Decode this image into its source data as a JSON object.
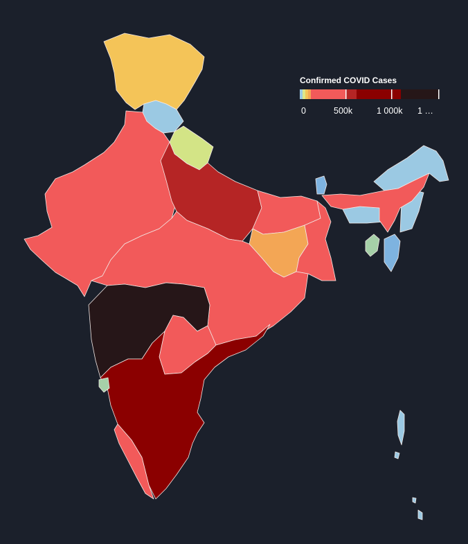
{
  "legend": {
    "title": "Confirmed COVID Cases",
    "ticks": [
      "0",
      "500k",
      "1 000k",
      "1 …"
    ]
  },
  "colors": {
    "background": "#1b202b",
    "border": "#f3e9e6",
    "legend_bands": [
      "#9bc9e3",
      "#dde78a",
      "#f4c458",
      "#f3a655",
      "#f25a5a",
      "#b52525",
      "#8b0000",
      "#261618"
    ]
  },
  "map_data": {
    "type": "choropleth",
    "region": "India (states)",
    "fill_by_region": {
      "jammu-kashmir": "#f4c458",
      "himachal": "#9bc9e3",
      "uttarakhand": "#d3e486",
      "punjab-haryana-rajasthan-gujarat": "#f25a5a",
      "uttar-pradesh": "#b52525",
      "bihar": "#f25a5a",
      "jharkhand": "#f3a655",
      "west-bengal": "#f25a5a",
      "madhya-pradesh-chhattisgarh-odisha": "#f25a5a",
      "maharashtra": "#261618",
      "telangana": "#f25a5a",
      "andhra-karnataka-tamil-nadu": "#8b0000",
      "kerala": "#f25a5a",
      "goa": "#a6d0a8",
      "sikkim": "#7eb3e0",
      "northeast": "#9bc9e3",
      "assam": "#f25a5a",
      "tripura": "#a6d0a8",
      "mizoram": "#7eb3e0",
      "andaman": "#9bc9e3"
    }
  }
}
